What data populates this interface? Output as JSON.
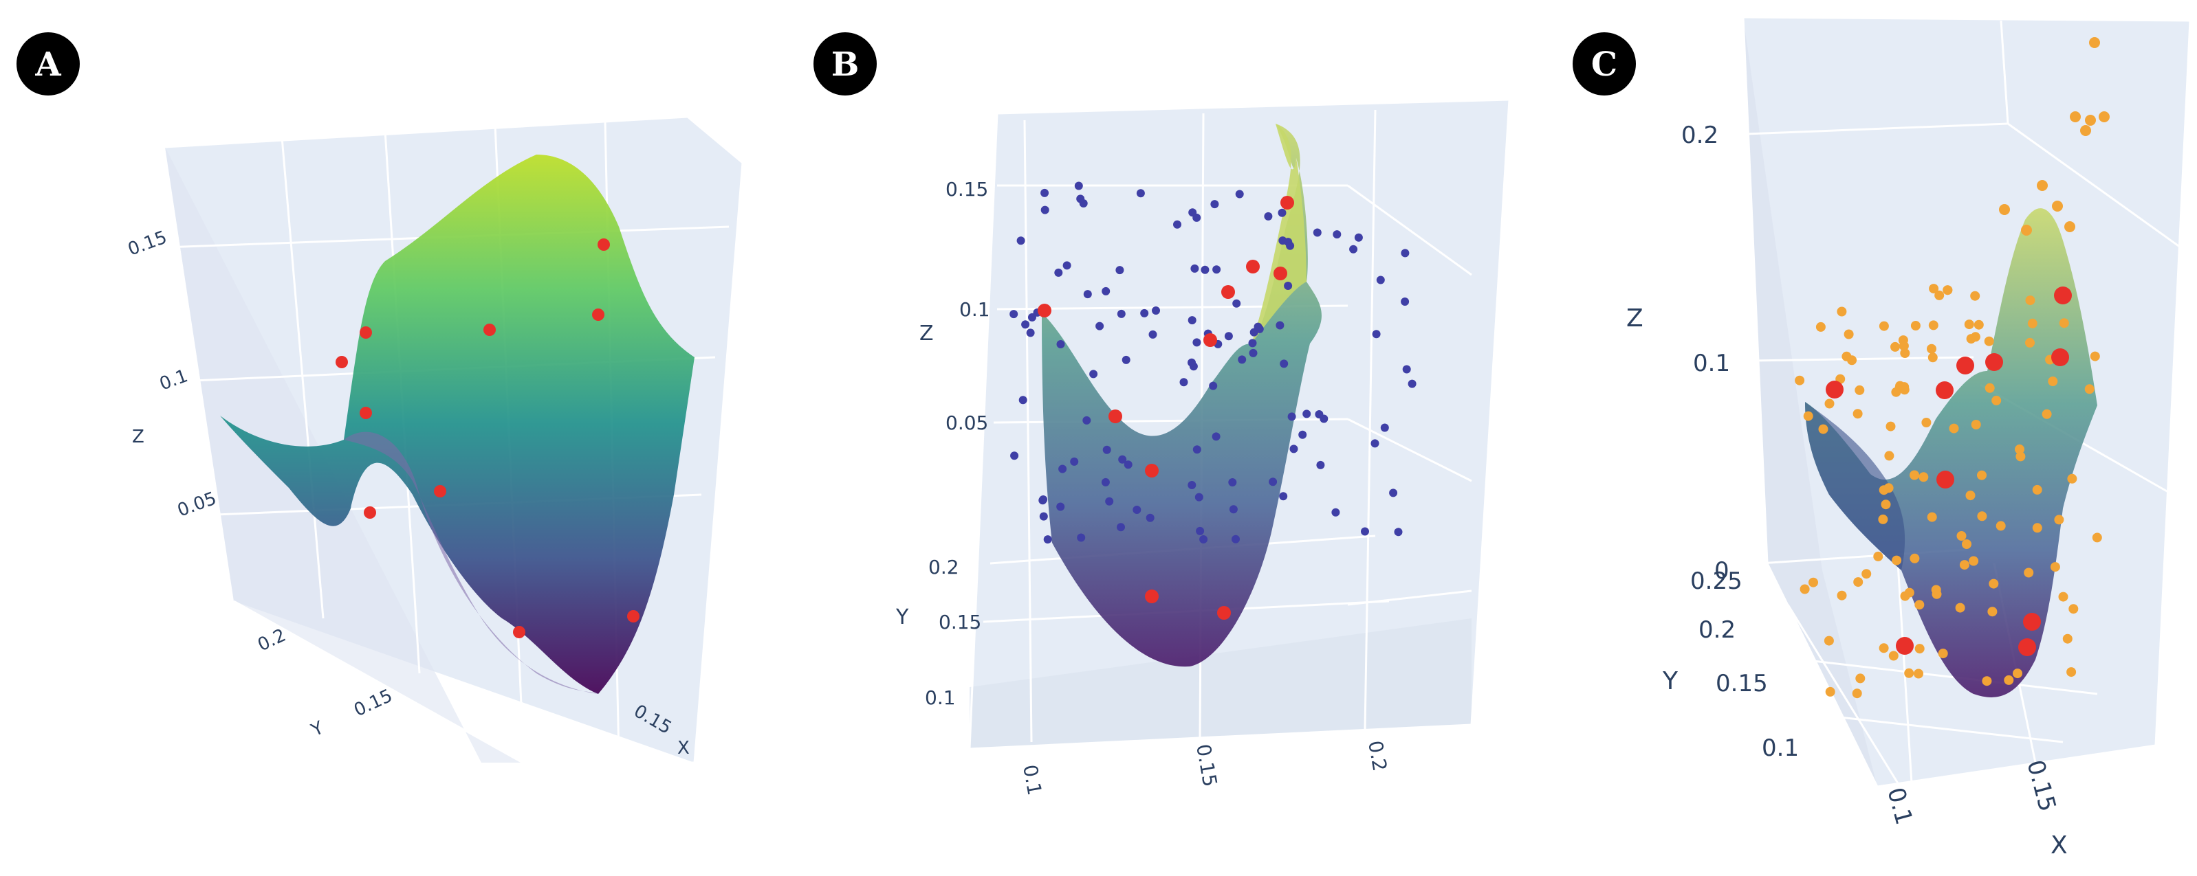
{
  "colors": {
    "scene_bg": "#e5ecf6",
    "grid": "#ffffff",
    "badge_bg": "#000000",
    "badge_text": "#ffffff",
    "axis_text": "#2a3f5f",
    "marker_red": "#e8302a",
    "marker_blue": "#3f3fa6",
    "marker_orange": "#f2a436",
    "colormap": [
      "#440154",
      "#3b528b",
      "#21918c",
      "#5ec962",
      "#bddf26"
    ]
  },
  "chart_data": [
    {
      "type": "surface",
      "panel": "A",
      "title": "",
      "xlabel": "X",
      "ylabel": "Y",
      "zlabel": "Z",
      "x_ticks": [
        "0.15"
      ],
      "y_ticks": [
        "0.2",
        "0.15"
      ],
      "z_ticks": [
        "0.15",
        "0.1",
        "0.05"
      ],
      "surface": "viridis-colored objective surface with a tall peak at the back and a deep valley in front",
      "markers": [
        {
          "name": "sampled points",
          "color": "red",
          "count": 10
        }
      ]
    },
    {
      "type": "surface",
      "panel": "B",
      "title": "",
      "xlabel": "",
      "ylabel": "Y",
      "zlabel": "Z",
      "x_ticks": [
        "0.1",
        "0.15",
        "0.2"
      ],
      "y_ticks": [
        "0.2",
        "0.15",
        "0.1"
      ],
      "z_ticks": [
        "0.15",
        "0.1",
        "0.05"
      ],
      "surface": "viridis-colored U-shaped valley surface with a sharp peak on the right",
      "markers": [
        {
          "name": "candidate points",
          "color": "blue",
          "count": 110
        },
        {
          "name": "sampled points",
          "color": "red",
          "count": 10
        }
      ]
    },
    {
      "type": "surface",
      "panel": "C",
      "title": "",
      "xlabel": "X",
      "ylabel": "Y",
      "zlabel": "Z",
      "x_ticks": [
        "0.1",
        "0.15"
      ],
      "y_ticks": [
        "0.25",
        "0.2",
        "0.15",
        "0.1"
      ],
      "z_ticks": [
        "0.2",
        "0.1",
        "0"
      ],
      "surface": "viridis-colored valley surface with a peak, viewed from a steep angle",
      "markers": [
        {
          "name": "evaluated points",
          "color": "orange",
          "count": 120
        },
        {
          "name": "sampled points",
          "color": "red",
          "count": 10
        }
      ]
    }
  ]
}
